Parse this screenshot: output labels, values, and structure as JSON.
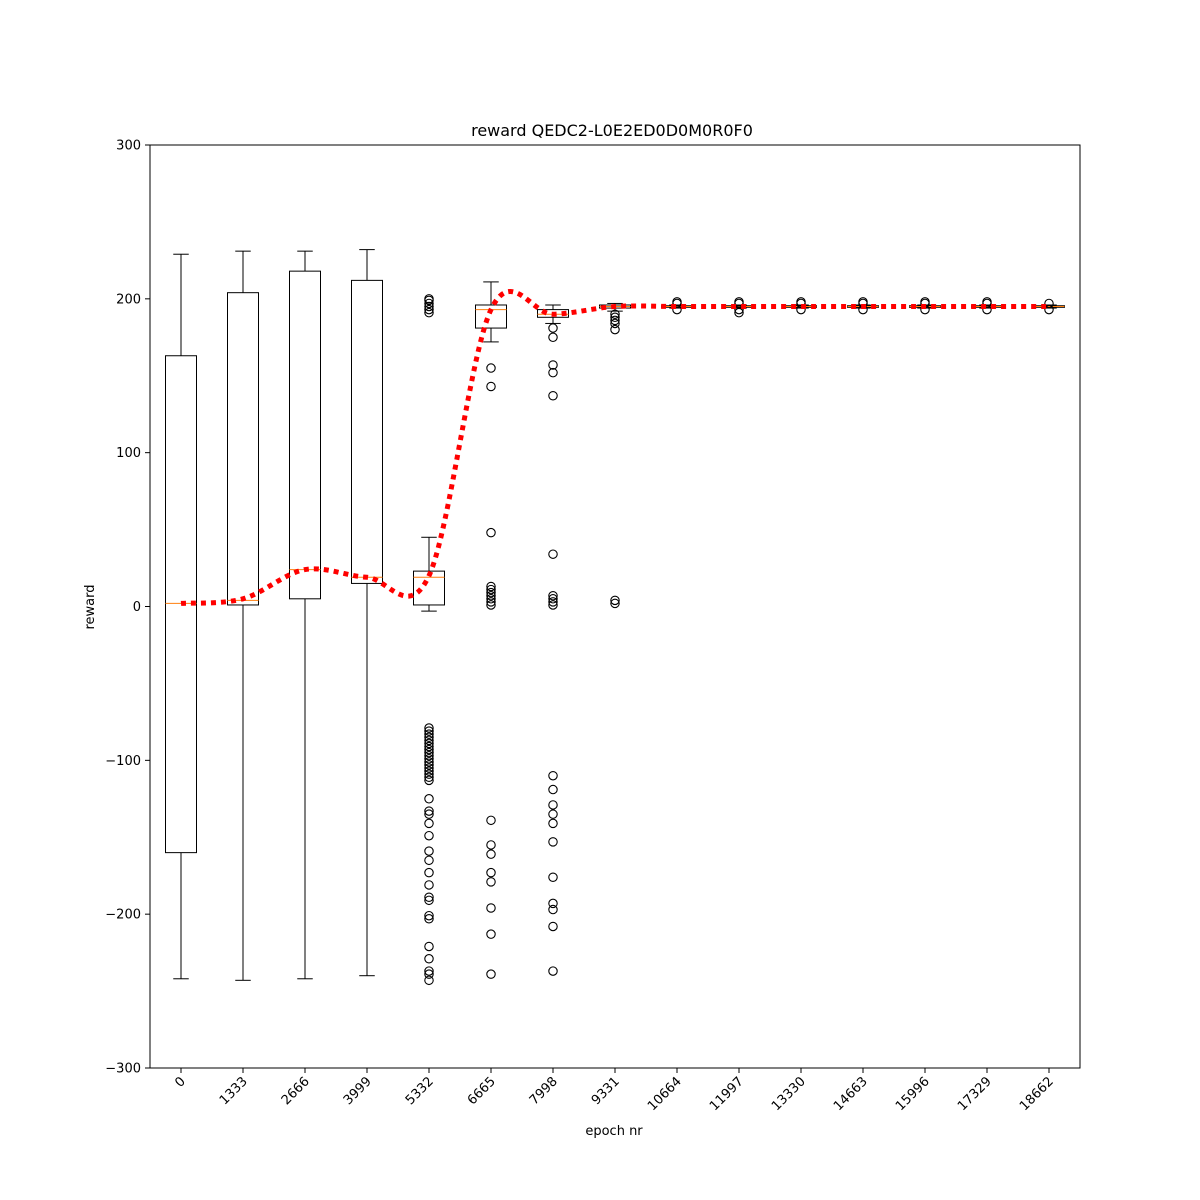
{
  "chart_data": {
    "type": "box",
    "title": "reward QEDC2-L0E2ED0D0M0R0F0",
    "xlabel": "epoch nr",
    "ylabel": "reward",
    "ylim": [
      -300,
      300
    ],
    "yticks": [
      -300,
      -200,
      -100,
      0,
      100,
      200,
      300
    ],
    "ytick_labels": [
      "−300",
      "−200",
      "−100",
      "0",
      "100",
      "200",
      "300"
    ],
    "categories": [
      "0",
      "1333",
      "2666",
      "3999",
      "5332",
      "6665",
      "7998",
      "9331",
      "10664",
      "11997",
      "13330",
      "14663",
      "15996",
      "17329",
      "18662"
    ],
    "colors": {
      "box": "#000000",
      "median": "#ff7f0e",
      "mean_line": "#ff0000",
      "flier": "#000000"
    },
    "boxes": [
      {
        "category": "0",
        "whisker_low": -242,
        "q1": -160,
        "median": 2,
        "q3": 163,
        "whisker_high": 229,
        "fliers": []
      },
      {
        "category": "1333",
        "whisker_low": -243,
        "q1": 1,
        "median": 4,
        "q3": 204,
        "whisker_high": 231,
        "fliers": []
      },
      {
        "category": "2666",
        "whisker_low": -242,
        "q1": 5,
        "median": 24,
        "q3": 218,
        "whisker_high": 231,
        "fliers": []
      },
      {
        "category": "3999",
        "whisker_low": -240,
        "q1": 15,
        "median": 19,
        "q3": 212,
        "whisker_high": 232,
        "fliers": []
      },
      {
        "category": "5332",
        "whisker_low": -3,
        "q1": 1,
        "median": 19,
        "q3": 23,
        "whisker_high": 45,
        "fliers": [
          191,
          193,
          195,
          197,
          199,
          200,
          -79,
          -81,
          -83,
          -85,
          -87,
          -89,
          -91,
          -93,
          -95,
          -97,
          -99,
          -101,
          -103,
          -105,
          -107,
          -109,
          -111,
          -113,
          -125,
          -133,
          -135,
          -141,
          -149,
          -159,
          -165,
          -173,
          -181,
          -189,
          -191,
          -201,
          -203,
          -221,
          -229,
          -237,
          -239,
          -243
        ]
      },
      {
        "category": "6665",
        "whisker_low": 172,
        "q1": 181,
        "median": 193,
        "q3": 196,
        "whisker_high": 211,
        "fliers": [
          155,
          143,
          48,
          13,
          11,
          9,
          7,
          5,
          3,
          1,
          -139,
          -155,
          -161,
          -173,
          -179,
          -196,
          -213,
          -239
        ]
      },
      {
        "category": "7998",
        "whisker_low": 184,
        "q1": 188,
        "median": 190,
        "q3": 193,
        "whisker_high": 196,
        "fliers": [
          181,
          175,
          157,
          152,
          137,
          34,
          7,
          5,
          3,
          1,
          -110,
          -119,
          -129,
          -135,
          -141,
          -153,
          -176,
          -193,
          -197,
          -208,
          -237
        ]
      },
      {
        "category": "9331",
        "whisker_low": 192,
        "q1": 194,
        "median": 195,
        "q3": 196,
        "whisker_high": 197,
        "fliers": [
          190,
          188,
          186,
          184,
          180,
          4,
          2
        ]
      },
      {
        "category": "10664",
        "whisker_low": 194,
        "q1": 194.5,
        "median": 195,
        "q3": 195.5,
        "whisker_high": 196,
        "fliers": [
          193,
          197,
          198
        ]
      },
      {
        "category": "11997",
        "whisker_low": 194,
        "q1": 194.5,
        "median": 195,
        "q3": 195.5,
        "whisker_high": 196,
        "fliers": [
          191,
          193,
          197,
          198
        ]
      },
      {
        "category": "13330",
        "whisker_low": 194,
        "q1": 194.5,
        "median": 195,
        "q3": 195.5,
        "whisker_high": 196,
        "fliers": [
          193,
          197,
          198
        ]
      },
      {
        "category": "14663",
        "whisker_low": 194,
        "q1": 194.5,
        "median": 195,
        "q3": 195.5,
        "whisker_high": 196,
        "fliers": [
          193,
          197,
          198
        ]
      },
      {
        "category": "15996",
        "whisker_low": 194,
        "q1": 194.5,
        "median": 195,
        "q3": 195.5,
        "whisker_high": 196,
        "fliers": [
          193,
          197,
          198
        ]
      },
      {
        "category": "17329",
        "whisker_low": 194,
        "q1": 194.5,
        "median": 195,
        "q3": 195.5,
        "whisker_high": 196,
        "fliers": [
          193,
          197,
          198
        ]
      },
      {
        "category": "18662",
        "whisker_low": 194,
        "q1": 194.5,
        "median": 195,
        "q3": 195.5,
        "whisker_high": 196,
        "fliers": [
          193,
          197
        ]
      }
    ],
    "mean_line": {
      "style": "dotted",
      "values": [
        2,
        5,
        24,
        19,
        20,
        193,
        190,
        195,
        195,
        195,
        195,
        195,
        195,
        195,
        195
      ]
    },
    "grid": false,
    "legend": "none"
  }
}
